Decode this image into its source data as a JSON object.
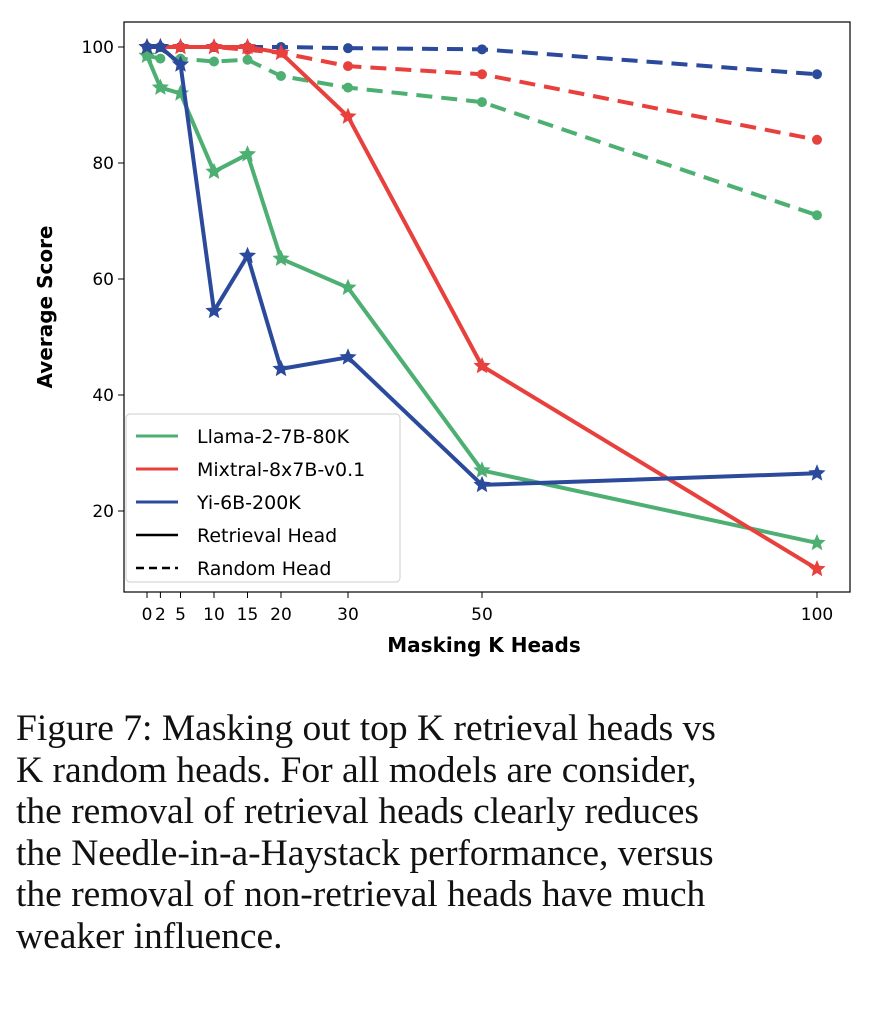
{
  "chart_data": {
    "type": "line",
    "title": "",
    "xlabel": "Masking K Heads",
    "ylabel": "Average Score",
    "x": [
      0,
      2,
      5,
      10,
      15,
      20,
      30,
      50,
      100
    ],
    "xticks": [
      "0",
      "2",
      "5",
      "10",
      "15",
      "20",
      "30",
      "50",
      "100"
    ],
    "yticks": [
      "20",
      "40",
      "60",
      "80",
      "100"
    ],
    "xlim": [
      -4,
      104
    ],
    "ylim": [
      6,
      108
    ],
    "grid": false,
    "legend_position": "bottom-left",
    "series": [
      {
        "name": "Llama-2-7B-80K",
        "type": "Retrieval Head",
        "color": "#4daf72",
        "values": [
          98.5,
          93,
          92,
          78.5,
          81.5,
          63.5,
          58.5,
          27,
          14.5
        ]
      },
      {
        "name": "Llama-2-7B-80K",
        "type": "Random Head",
        "color": "#4daf72",
        "values": [
          98.5,
          98,
          98,
          97.5,
          97.8,
          95,
          93,
          90.5,
          71
        ]
      },
      {
        "name": "Mixtral-8x7B-v0.1",
        "type": "Retrieval Head",
        "color": "#e8403c",
        "values": [
          100,
          100,
          100,
          100,
          100,
          99,
          88,
          45,
          10
        ]
      },
      {
        "name": "Mixtral-8x7B-v0.1",
        "type": "Random Head",
        "color": "#e8403c",
        "values": [
          100,
          100,
          100,
          100,
          99.5,
          99,
          96.7,
          95.3,
          84
        ]
      },
      {
        "name": "Yi-6B-200K",
        "type": "Retrieval Head",
        "color": "#2b4a9b",
        "values": [
          100,
          100,
          97,
          54.5,
          64,
          44.5,
          46.5,
          24.5,
          26.5
        ]
      },
      {
        "name": "Yi-6B-200K",
        "type": "Random Head",
        "color": "#2b4a9b",
        "values": [
          100,
          100,
          100,
          100,
          100,
          100,
          99.8,
          99.6,
          95.3
        ]
      }
    ],
    "legend": [
      "Llama-2-7B-80K",
      "Mixtral-8x7B-v0.1",
      "Yi-6B-200K",
      "Retrieval Head",
      "Random Head"
    ]
  },
  "caption": {
    "lines": [
      "Figure 7: Masking out top K retrieval heads vs",
      "K random heads.  For all models are consider,",
      "the removal of retrieval heads clearly reduces",
      "the Needle-in-a-Haystack performance, versus",
      "the removal of non-retrieval heads have much",
      "weaker influence."
    ]
  }
}
